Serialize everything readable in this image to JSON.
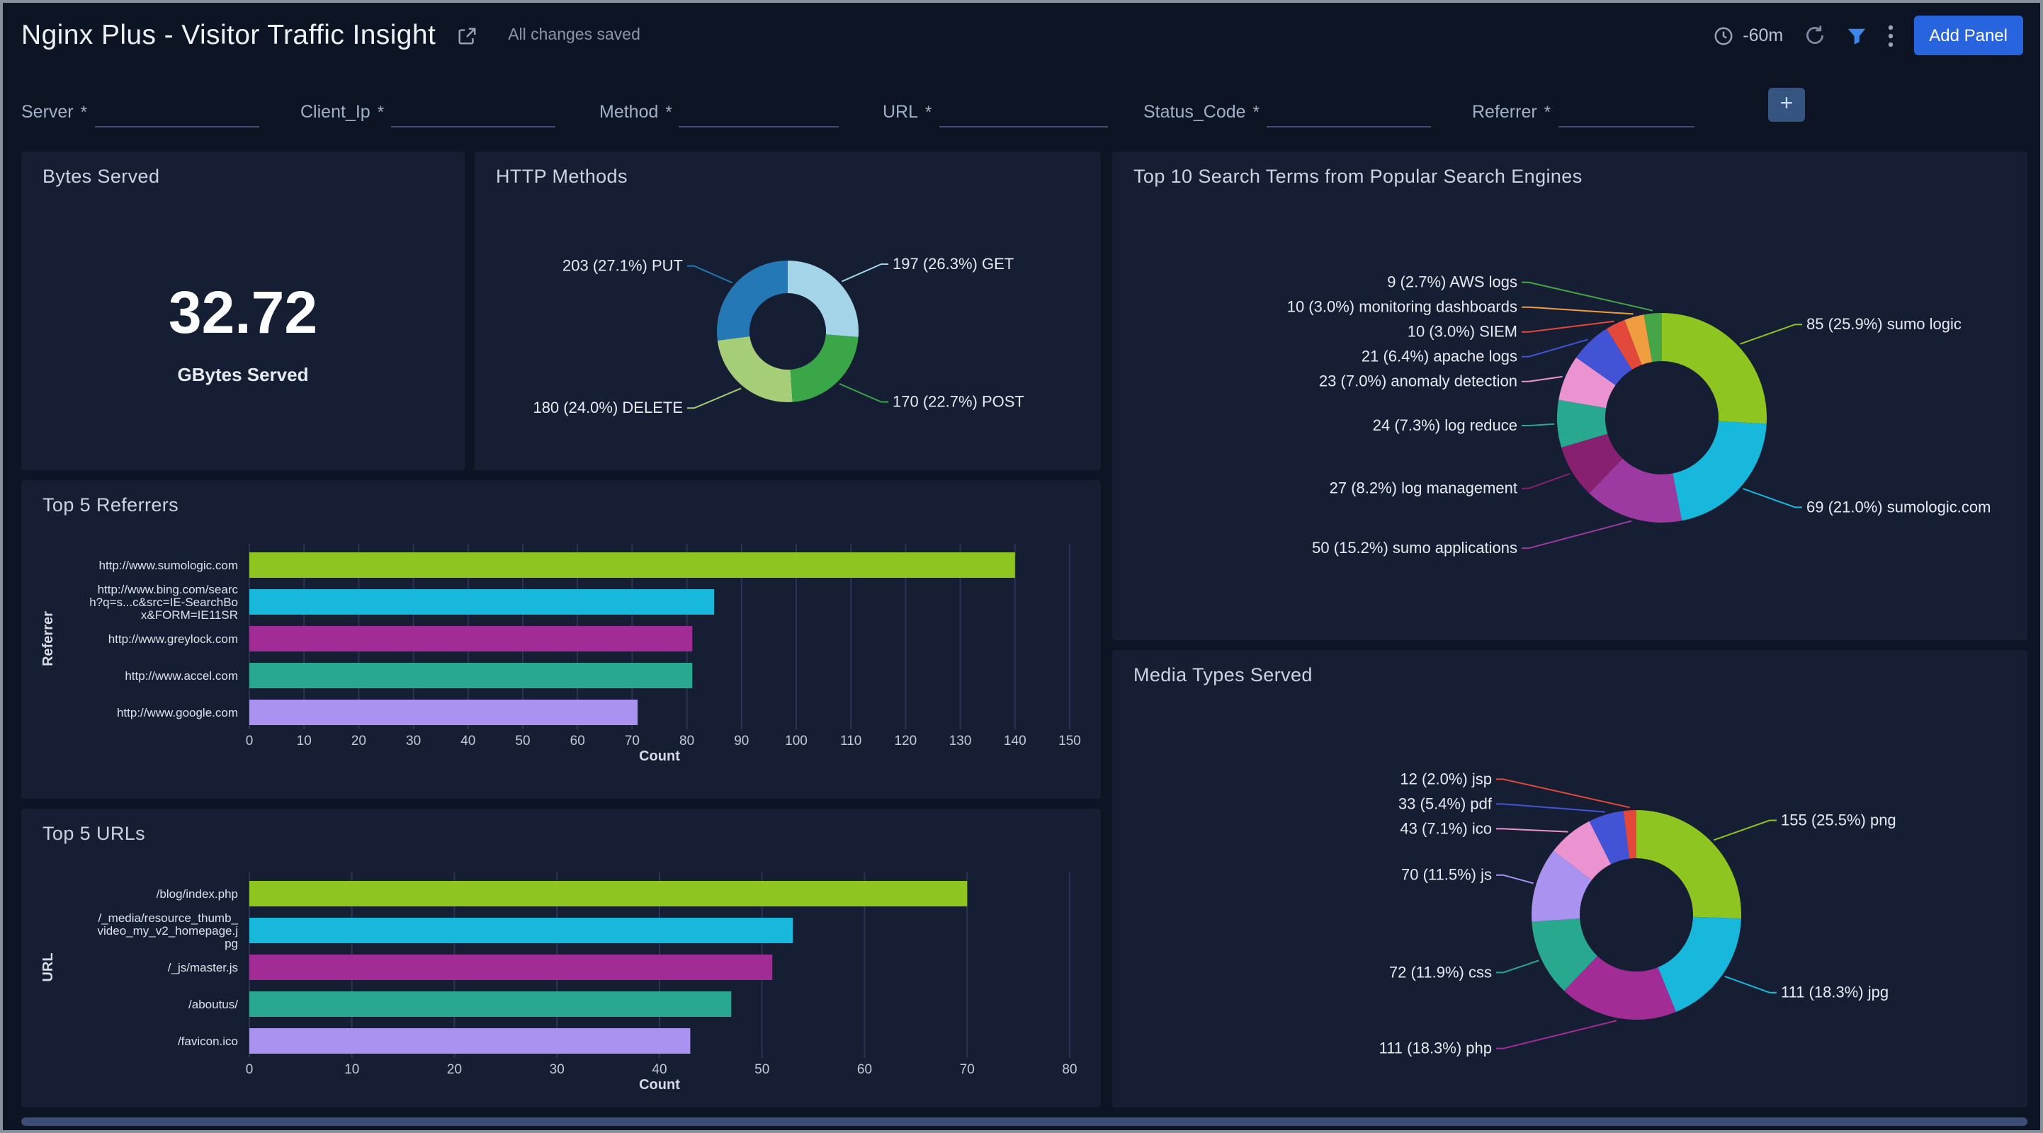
{
  "header": {
    "title": "Nginx Plus - Visitor Traffic Insight",
    "saved_status": "All changes saved",
    "time_range": "-60m",
    "add_panel_label": "Add Panel"
  },
  "filters": {
    "required_marker": "*",
    "fields": [
      {
        "label": "Server",
        "value": ""
      },
      {
        "label": "Client_Ip",
        "value": ""
      },
      {
        "label": "Method",
        "value": ""
      },
      {
        "label": "URL",
        "value": ""
      },
      {
        "label": "Status_Code",
        "value": ""
      },
      {
        "label": "Referrer",
        "value": ""
      }
    ]
  },
  "theme": {
    "background": "#0D1524",
    "panel": "#161E33",
    "accent_blue": "#2864DE",
    "funnel_blue": "#3E87E8",
    "grid": "#2A3452"
  },
  "chart_data": [
    {
      "id": "bytes-served",
      "type": "single_value",
      "title": "Bytes Served",
      "value": 32.72,
      "display": "32.72",
      "unit": "GBytes Served"
    },
    {
      "id": "http-methods",
      "type": "pie",
      "donut": true,
      "title": "HTTP Methods",
      "slices": [
        {
          "name": "GET",
          "value": 197,
          "pct": "26.3%",
          "color": "#A3D4E8"
        },
        {
          "name": "POST",
          "value": 170,
          "pct": "22.7%",
          "color": "#3AA648"
        },
        {
          "name": "DELETE",
          "value": 180,
          "pct": "24.0%",
          "color": "#A6CE78"
        },
        {
          "name": "PUT",
          "value": 203,
          "pct": "27.1%",
          "color": "#2478B5"
        }
      ]
    },
    {
      "id": "search-terms",
      "type": "pie",
      "donut": true,
      "title": "Top 10 Search Terms from Popular Search Engines",
      "slices": [
        {
          "name": "sumo logic",
          "value": 85,
          "pct": "25.9%",
          "color": "#8FC521"
        },
        {
          "name": "sumologic.com",
          "value": 69,
          "pct": "21.0%",
          "color": "#17B8DC"
        },
        {
          "name": "sumo applications",
          "value": 50,
          "pct": "15.2%",
          "color": "#9C3AA2"
        },
        {
          "name": "log management",
          "value": 27,
          "pct": "8.2%",
          "color": "#872070"
        },
        {
          "name": "log reduce",
          "value": 24,
          "pct": "7.3%",
          "color": "#28A88E"
        },
        {
          "name": "anomaly detection",
          "value": 23,
          "pct": "7.0%",
          "color": "#EA93D0"
        },
        {
          "name": "apache logs",
          "value": 21,
          "pct": "6.4%",
          "color": "#4353D6"
        },
        {
          "name": "SIEM",
          "value": 10,
          "pct": "3.0%",
          "color": "#E2493B"
        },
        {
          "name": "monitoring dashboards",
          "value": 10,
          "pct": "3.0%",
          "color": "#EF9D3E"
        },
        {
          "name": "AWS logs",
          "value": 9,
          "pct": "2.7%",
          "color": "#46A546"
        }
      ]
    },
    {
      "id": "top-referrers",
      "type": "bar",
      "orientation": "horizontal",
      "title": "Top 5 Referrers",
      "xlabel": "Count",
      "ylabel": "Referrer",
      "xlim": [
        0,
        150
      ],
      "xtick_step": 10,
      "grid": true,
      "bars": [
        {
          "label": "http://www.sumologic.com",
          "lines": [
            "http://www.sumologic.com"
          ],
          "value": 140,
          "color": "#8FC521"
        },
        {
          "label": "http://www.bing.com/search?q=s...c&src=IE-SearchBox&FORM=IE11SR",
          "lines": [
            "http://www.bing.com/searc",
            "h?q=s...c&src=IE-SearchBo",
            "x&FORM=IE11SR"
          ],
          "value": 85,
          "color": "#17B8DC"
        },
        {
          "label": "http://www.greylock.com",
          "lines": [
            "http://www.greylock.com"
          ],
          "value": 81,
          "color": "#A12C96"
        },
        {
          "label": "http://www.accel.com",
          "lines": [
            "http://www.accel.com"
          ],
          "value": 81,
          "color": "#28A88E"
        },
        {
          "label": "http://www.google.com",
          "lines": [
            "http://www.google.com"
          ],
          "value": 71,
          "color": "#A992F0"
        }
      ]
    },
    {
      "id": "top-urls",
      "type": "bar",
      "orientation": "horizontal",
      "title": "Top 5 URLs",
      "xlabel": "Count",
      "ylabel": "URL",
      "xlim": [
        0,
        80
      ],
      "xtick_step": 10,
      "grid": true,
      "bars": [
        {
          "label": "/blog/index.php",
          "lines": [
            "/blog/index.php"
          ],
          "value": 70,
          "color": "#8FC521"
        },
        {
          "label": "/_media/resource_thumb_video_my_v2_homepage.jpg",
          "lines": [
            "/_media/resource_thumb_",
            "video_my_v2_homepage.j",
            "pg"
          ],
          "value": 53,
          "color": "#17B8DC"
        },
        {
          "label": "/_js/master.js",
          "lines": [
            "/_js/master.js"
          ],
          "value": 51,
          "color": "#A12C96"
        },
        {
          "label": "/aboutus/",
          "lines": [
            "/aboutus/"
          ],
          "value": 47,
          "color": "#28A88E"
        },
        {
          "label": "/favicon.ico",
          "lines": [
            "/favicon.ico"
          ],
          "value": 43,
          "color": "#A992F0"
        }
      ]
    },
    {
      "id": "media-types",
      "type": "pie",
      "donut": true,
      "title": "Media Types Served",
      "slices": [
        {
          "name": "png",
          "value": 155,
          "pct": "25.5%",
          "color": "#8FC521"
        },
        {
          "name": "jpg",
          "value": 111,
          "pct": "18.3%",
          "color": "#17B8DC"
        },
        {
          "name": "php",
          "value": 111,
          "pct": "18.3%",
          "color": "#A12C96"
        },
        {
          "name": "css",
          "value": 72,
          "pct": "11.9%",
          "color": "#28A88E"
        },
        {
          "name": "js",
          "value": 70,
          "pct": "11.5%",
          "color": "#A992F0"
        },
        {
          "name": "ico",
          "value": 43,
          "pct": "7.1%",
          "color": "#EA93D0"
        },
        {
          "name": "pdf",
          "value": 33,
          "pct": "5.4%",
          "color": "#4353D6"
        },
        {
          "name": "jsp",
          "value": 12,
          "pct": "2.0%",
          "color": "#E2493B"
        }
      ]
    }
  ]
}
